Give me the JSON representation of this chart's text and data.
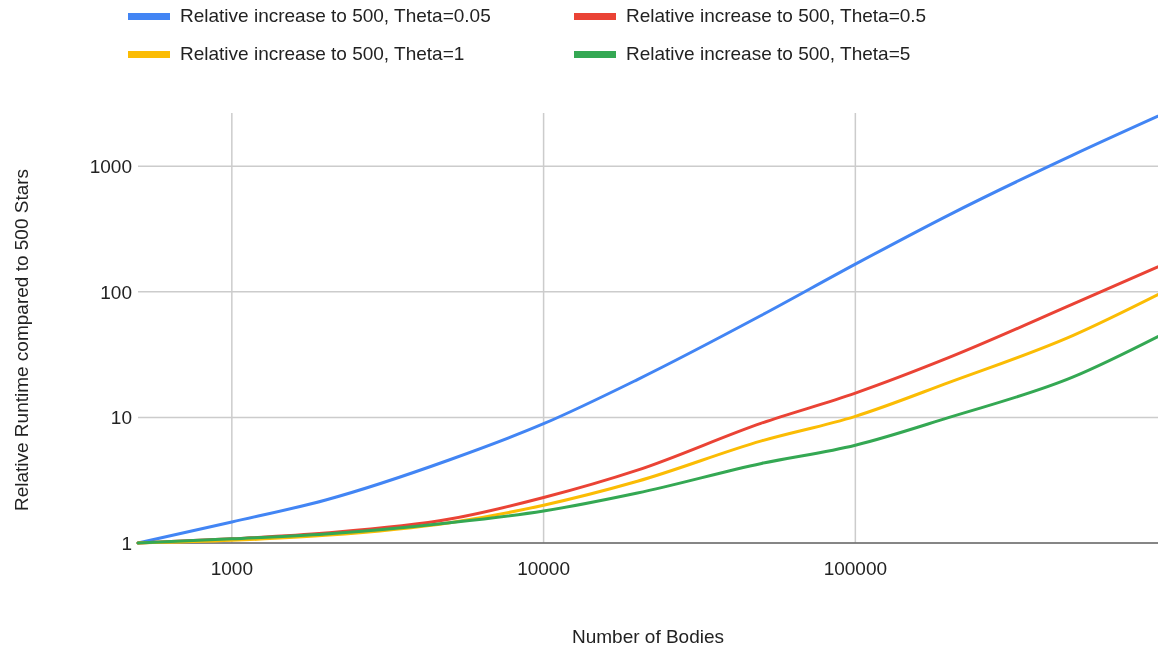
{
  "chart_data": {
    "type": "line",
    "xlabel": "Number of Bodies",
    "ylabel": "Relative Runtime compared to 500 Stars",
    "log": "xy",
    "grid": true,
    "legend": "top",
    "line_style": "solid",
    "marker": "none",
    "x": [
      500,
      1000,
      2000,
      5000,
      10000,
      20000,
      50000,
      100000,
      200000,
      500000,
      935000
    ],
    "xlim": [
      500,
      935000
    ],
    "xticks": [
      1000,
      10000,
      100000
    ],
    "ylim": [
      1,
      2650
    ],
    "yticks": [
      1,
      10,
      100,
      1000
    ],
    "series": [
      {
        "name": "Relative increase to 500, Theta=0.05",
        "color": "#4285f4",
        "values": [
          1,
          1.47,
          2.2,
          4.6,
          8.9,
          20,
          65,
          166,
          410,
          1230,
          2500
        ]
      },
      {
        "name": "Relative increase to 500, Theta=0.5",
        "color": "#ea4335",
        "values": [
          1,
          1.08,
          1.2,
          1.55,
          2.3,
          3.8,
          9,
          15.6,
          30,
          80,
          158
        ]
      },
      {
        "name": "Relative increase to 500, Theta=1",
        "color": "#fbbc04",
        "values": [
          1,
          1.05,
          1.15,
          1.45,
          2,
          3.1,
          6.5,
          10.2,
          19,
          45,
          95
        ]
      },
      {
        "name": "Relative increase to 500, Theta=5",
        "color": "#34a853",
        "values": [
          1,
          1.08,
          1.18,
          1.45,
          1.8,
          2.5,
          4.3,
          6,
          10,
          21,
          44
        ]
      }
    ]
  }
}
